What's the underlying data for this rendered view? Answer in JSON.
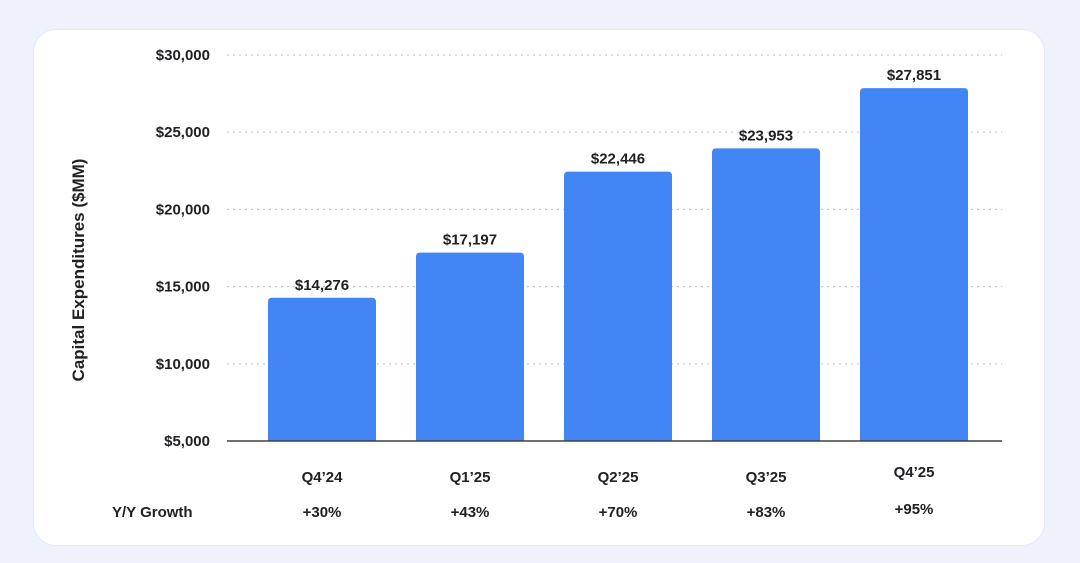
{
  "chart_data": {
    "type": "bar",
    "categories": [
      "Q4’24",
      "Q1’25",
      "Q2’25",
      "Q3’25",
      "Q4’25"
    ],
    "values": [
      14276,
      17197,
      22446,
      23953,
      27851
    ],
    "value_labels": [
      "$14,276",
      "$17,197",
      "$22,446",
      "$23,953",
      "$27,851"
    ],
    "ylabel": "Capital Expenditures ($MM)",
    "ylim": [
      5000,
      30000
    ],
    "yticks": [
      5000,
      10000,
      15000,
      20000,
      25000,
      30000
    ],
    "ytick_labels": [
      "$5,000",
      "$10,000",
      "$15,000",
      "$20,000",
      "$25,000",
      "$30,000"
    ],
    "grid": true,
    "bar_color": "#4285f4",
    "growth_row": {
      "label": "Y/Y Growth",
      "values": [
        "+30%",
        "+43%",
        "+70%",
        "+83%",
        "+95%"
      ]
    }
  }
}
